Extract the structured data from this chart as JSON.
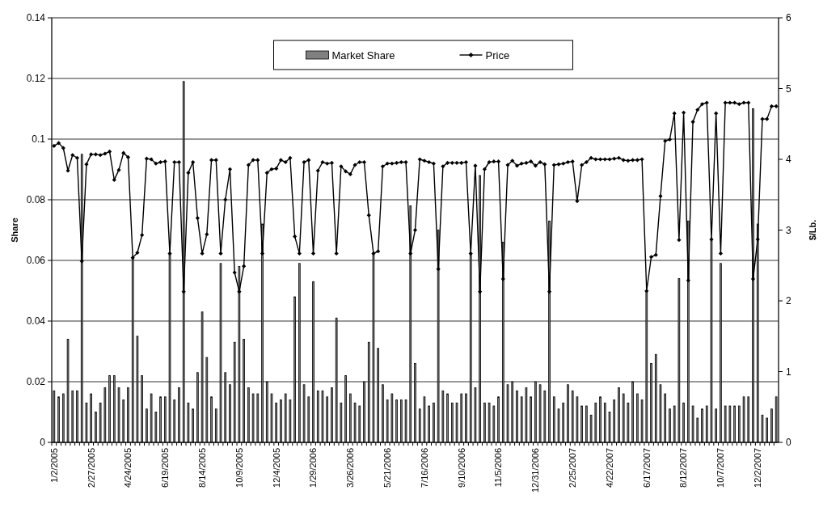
{
  "chart_data": {
    "type": "bar",
    "categories": [
      "1/2/2005",
      null,
      null,
      null,
      null,
      null,
      null,
      null,
      "2/27/2005",
      null,
      null,
      null,
      null,
      null,
      null,
      null,
      "4/24/2005",
      null,
      null,
      null,
      null,
      null,
      null,
      null,
      "6/19/2005",
      null,
      null,
      null,
      null,
      null,
      null,
      null,
      "8/14/2005",
      null,
      null,
      null,
      null,
      null,
      null,
      null,
      "10/9/2005",
      null,
      null,
      null,
      null,
      null,
      null,
      null,
      "12/4/2005",
      null,
      null,
      null,
      null,
      null,
      null,
      null,
      "1/29/2006",
      null,
      null,
      null,
      null,
      null,
      null,
      null,
      "3/26/2006",
      null,
      null,
      null,
      null,
      null,
      null,
      null,
      "5/21/2006",
      null,
      null,
      null,
      null,
      null,
      null,
      null,
      "7/16/2006",
      null,
      null,
      null,
      null,
      null,
      null,
      null,
      "9/10/2006",
      null,
      null,
      null,
      null,
      null,
      null,
      null,
      "11/5/2006",
      null,
      null,
      null,
      null,
      null,
      null,
      null,
      "12/31/2006",
      null,
      null,
      null,
      null,
      null,
      null,
      null,
      "2/25/2007",
      null,
      null,
      null,
      null,
      null,
      null,
      null,
      "4/22/2007",
      null,
      null,
      null,
      null,
      null,
      null,
      null,
      "6/17/2007",
      null,
      null,
      null,
      null,
      null,
      null,
      null,
      "8/12/2007",
      null,
      null,
      null,
      null,
      null,
      null,
      null,
      "10/7/2007",
      null,
      null,
      null,
      null,
      null,
      null,
      null,
      "12/2/2007",
      null,
      null,
      null,
      null
    ],
    "series": [
      {
        "name": "Market Share",
        "color": "#808080",
        "values": [
          0.017,
          0.015,
          0.016,
          0.034,
          0.017,
          0.017,
          0.095,
          0.013,
          0.016,
          0.01,
          0.013,
          0.018,
          0.022,
          0.022,
          0.018,
          0.014,
          0.018,
          0.061,
          0.035,
          0.022,
          0.011,
          0.016,
          0.01,
          0.015,
          0.015,
          0.062,
          0.014,
          0.018,
          0.119,
          0.013,
          0.011,
          0.023,
          0.043,
          0.028,
          0.015,
          0.011,
          0.059,
          0.023,
          0.019,
          0.033,
          0.058,
          0.034,
          0.018,
          0.016,
          0.016,
          0.072,
          0.02,
          0.016,
          0.013,
          0.014,
          0.016,
          0.014,
          0.048,
          0.059,
          0.019,
          0.015,
          0.053,
          0.017,
          0.017,
          0.015,
          0.018,
          0.041,
          0.013,
          0.022,
          0.016,
          0.013,
          0.012,
          0.02,
          0.033,
          0.062,
          0.031,
          0.019,
          0.014,
          0.016,
          0.014,
          0.014,
          0.014,
          0.078,
          0.026,
          0.011,
          0.015,
          0.012,
          0.013,
          0.07,
          0.017,
          0.016,
          0.013,
          0.013,
          0.016,
          0.016,
          0.062,
          0.018,
          0.088,
          0.013,
          0.013,
          0.012,
          0.015,
          0.066,
          0.019,
          0.02,
          0.017,
          0.015,
          0.018,
          0.015,
          0.02,
          0.019,
          0.017,
          0.073,
          0.015,
          0.011,
          0.013,
          0.019,
          0.017,
          0.015,
          0.012,
          0.012,
          0.009,
          0.013,
          0.015,
          0.013,
          0.01,
          0.014,
          0.018,
          0.016,
          0.013,
          0.02,
          0.016,
          0.014,
          0.05,
          0.026,
          0.029,
          0.019,
          0.016,
          0.011,
          0.012,
          0.054,
          0.013,
          0.073,
          0.012,
          0.008,
          0.011,
          0.012,
          0.067,
          0.011,
          0.059,
          0.012,
          0.012,
          0.012,
          0.012,
          0.015,
          0.015,
          0.11,
          0.072,
          0.009,
          0.008,
          0.011,
          0.015
        ]
      },
      {
        "name": "Price",
        "type": "line",
        "axis": "y2",
        "color": "#000000",
        "marker": "diamond",
        "values": [
          4.19,
          4.23,
          4.16,
          3.84,
          4.06,
          4.02,
          2.56,
          3.93,
          4.07,
          4.07,
          4.06,
          4.08,
          4.11,
          3.71,
          3.85,
          4.09,
          4.03,
          2.61,
          2.68,
          2.93,
          4.01,
          4.0,
          3.94,
          3.96,
          3.97,
          2.67,
          3.96,
          3.96,
          2.13,
          3.81,
          3.96,
          3.17,
          2.67,
          2.94,
          3.99,
          3.99,
          2.67,
          3.43,
          3.86,
          2.4,
          2.13,
          2.49,
          3.92,
          3.99,
          3.99,
          2.67,
          3.81,
          3.86,
          3.87,
          3.99,
          3.96,
          4.02,
          2.91,
          2.67,
          3.96,
          3.99,
          2.67,
          3.84,
          3.96,
          3.94,
          3.95,
          2.67,
          3.9,
          3.83,
          3.79,
          3.92,
          3.96,
          3.96,
          3.21,
          2.67,
          2.7,
          3.9,
          3.94,
          3.94,
          3.95,
          3.96,
          3.96,
          2.67,
          3.0,
          4.0,
          3.98,
          3.96,
          3.94,
          2.45,
          3.9,
          3.95,
          3.95,
          3.95,
          3.95,
          3.96,
          2.67,
          3.91,
          2.13,
          3.86,
          3.96,
          3.97,
          3.97,
          2.31,
          3.92,
          3.98,
          3.91,
          3.94,
          3.95,
          3.97,
          3.91,
          3.96,
          3.93,
          2.13,
          3.92,
          3.93,
          3.94,
          3.96,
          3.97,
          3.41,
          3.92,
          3.96,
          4.02,
          4.0,
          4.0,
          4.0,
          4.0,
          4.01,
          4.02,
          3.99,
          3.98,
          3.99,
          3.99,
          4.0,
          2.14,
          2.62,
          2.65,
          3.48,
          4.26,
          4.28,
          4.65,
          2.86,
          4.66,
          2.29,
          4.53,
          4.7,
          4.78,
          4.8,
          2.87,
          4.65,
          2.67,
          4.8,
          4.8,
          4.8,
          4.78,
          4.8,
          4.8,
          2.31,
          2.87,
          4.57,
          4.57,
          4.75,
          4.75
        ]
      }
    ],
    "ylabel": "Share",
    "y2label": "$/Lb.",
    "ylim": [
      0,
      0.14
    ],
    "yticks": [
      0,
      0.02,
      0.04,
      0.06,
      0.08,
      0.1,
      0.12,
      0.14
    ],
    "y2lim": [
      0,
      6
    ],
    "y2ticks": [
      0,
      1,
      2,
      3,
      4,
      5,
      6
    ],
    "grid": "y",
    "legend": "top"
  }
}
